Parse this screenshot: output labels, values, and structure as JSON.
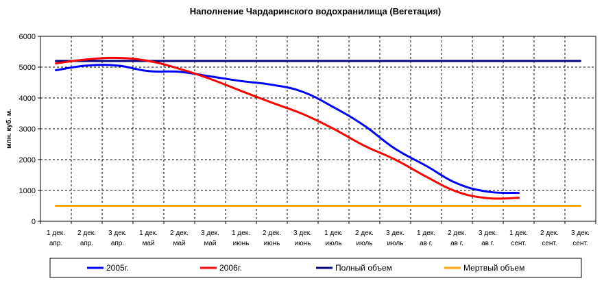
{
  "chart_data": {
    "type": "line",
    "title": "Наполнение Чардаринского водохранилища (Вегетация)",
    "ylabel": "млн. куб. м.",
    "xlabel": "",
    "ylim": [
      0,
      6000
    ],
    "yticks": [
      0,
      1000,
      2000,
      3000,
      4000,
      5000,
      6000
    ],
    "grid": true,
    "legend_position": "bottom",
    "categories": [
      [
        "1 дек.",
        "апр."
      ],
      [
        "2 дек.",
        "апр."
      ],
      [
        "3 дек.",
        "апр."
      ],
      [
        "1 дек.",
        "май"
      ],
      [
        "2 дек.",
        "май"
      ],
      [
        "3 дек.",
        "май"
      ],
      [
        "1 дек.",
        "июнь"
      ],
      [
        "2 дек.",
        "июнь"
      ],
      [
        "3 дек.",
        "июнь"
      ],
      [
        "1 дек.",
        "июль"
      ],
      [
        "2 дек.",
        "июль"
      ],
      [
        "3 дек.",
        "июль"
      ],
      [
        "1 дек.",
        "ав г."
      ],
      [
        "2 дек.",
        "ав г."
      ],
      [
        "3 дек.",
        "ав г."
      ],
      [
        "1 дек.",
        "сент."
      ],
      [
        "2 дек.",
        "сент."
      ],
      [
        "3 дек.",
        "сент."
      ]
    ],
    "series": [
      {
        "name": "2005г.",
        "color": "#0000ff",
        "values": [
          4900,
          5050,
          5050,
          4870,
          4850,
          4700,
          4550,
          4430,
          4200,
          3700,
          3100,
          2350,
          1800,
          1230,
          960,
          920,
          null,
          null
        ]
      },
      {
        "name": "2006г.",
        "color": "#ff0000",
        "values": [
          5120,
          5250,
          5300,
          5200,
          4950,
          4620,
          4230,
          3850,
          3480,
          3000,
          2450,
          2000,
          1450,
          960,
          750,
          760,
          null,
          null
        ]
      },
      {
        "name": "Полный объем",
        "color": "#000080",
        "values": [
          5200,
          5200,
          5200,
          5200,
          5200,
          5200,
          5200,
          5200,
          5200,
          5200,
          5200,
          5200,
          5200,
          5200,
          5200,
          5200,
          5200,
          5200
        ]
      },
      {
        "name": "Мертвый объем",
        "color": "#ffa500",
        "values": [
          500,
          500,
          500,
          500,
          500,
          500,
          500,
          500,
          500,
          500,
          500,
          500,
          500,
          500,
          500,
          500,
          500,
          500
        ]
      }
    ]
  }
}
